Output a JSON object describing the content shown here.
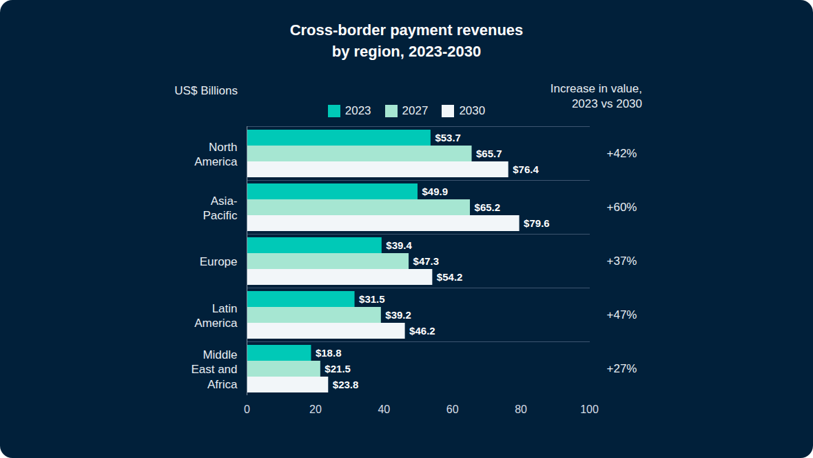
{
  "chart_data": {
    "type": "bar",
    "orientation": "horizontal",
    "title": "Cross-border payment revenues by region, 2023-2030",
    "xlabel": "US$ Billions",
    "categories": [
      "North America",
      "Asia-Pacific",
      "Europe",
      "Latin America",
      "Middle East and Africa"
    ],
    "series": [
      {
        "name": "2023",
        "color": "#00c9b7",
        "values": [
          53.7,
          49.9,
          39.4,
          31.5,
          18.8
        ],
        "value_labels": [
          "$53.7",
          "$49.9",
          "$39.4",
          "$31.5",
          "$18.8"
        ]
      },
      {
        "name": "2027",
        "color": "#a6e6d2",
        "values": [
          65.7,
          65.2,
          47.3,
          39.2,
          21.5
        ],
        "value_labels": [
          "$65.7",
          "$65.2",
          "$47.3",
          "$39.2",
          "$21.5"
        ]
      },
      {
        "name": "2030",
        "color": "#f2f6f9",
        "values": [
          76.4,
          79.6,
          54.2,
          46.2,
          23.8
        ],
        "value_labels": [
          "$76.4",
          "$79.6",
          "$54.2",
          "$46.2",
          "$23.8"
        ]
      }
    ],
    "xlim": [
      0,
      100
    ],
    "xticks": [
      0,
      20,
      40,
      60,
      80,
      100
    ],
    "grid": false,
    "legend": "top",
    "data_labels": true,
    "increase": {
      "title": "Increase in value, 2023 vs 2030",
      "values": [
        42,
        60,
        37,
        47,
        27
      ],
      "value_labels": [
        "+42%",
        "+60%",
        "+37%",
        "+47%",
        "+27%"
      ]
    }
  }
}
